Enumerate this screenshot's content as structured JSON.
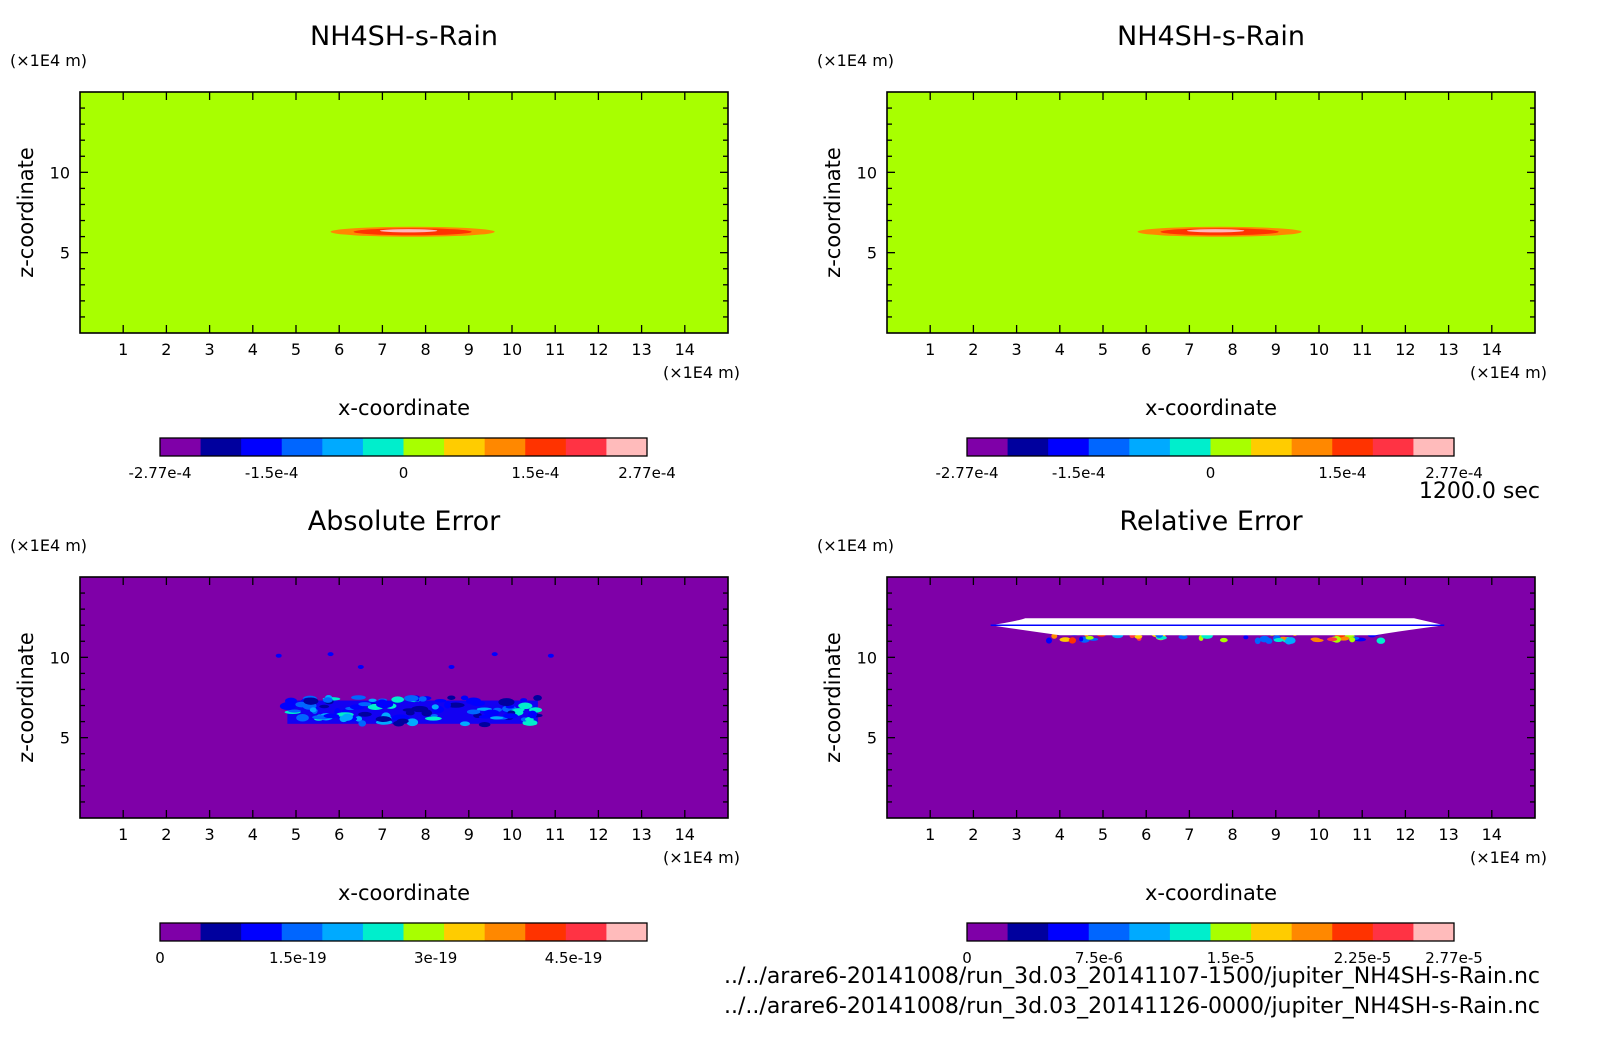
{
  "time_label": "1200.0 sec",
  "footer": {
    "file1": "../../arare6-20141008/run_3d.03_20141107-1500/jupiter_NH4SH-s-Rain.nc",
    "file2": "../../arare6-20141008/run_3d.03_20141126-0000/jupiter_NH4SH-s-Rain.nc"
  },
  "colors": {
    "purple": "#7f00a8",
    "green": "#a8ff00",
    "palette": [
      "#7f00a8",
      "#00009e",
      "#0000ff",
      "#0066ff",
      "#00aaff",
      "#00eecc",
      "#a8ff00",
      "#ffcc00",
      "#ff8800",
      "#ff3300",
      "#ff3344",
      "#ffbbbb"
    ]
  },
  "chart_data": [
    {
      "type": "heatmap",
      "title": "NH4SH-s-Rain",
      "xlabel": "x-coordinate",
      "ylabel": "z-coordinate",
      "xunit": "(×1E4 m)",
      "yunit": "(×1E4 m)",
      "xlim": [
        0,
        15
      ],
      "ylim": [
        0,
        15
      ],
      "xticks": [
        1,
        2,
        3,
        4,
        5,
        6,
        7,
        8,
        9,
        10,
        11,
        12,
        13,
        14
      ],
      "yticks": [
        5,
        10
      ],
      "background_value": 0,
      "feature": "thin lens of positive values centred near x=7.7, z=6.3, spanning x≈5.6–9.6",
      "colorbar": {
        "labels": [
          "-2.77e-4",
          "-1.5e-4",
          "0",
          "1.5e-4",
          "2.77e-4"
        ],
        "min": -0.000277,
        "max": 0.000277
      }
    },
    {
      "type": "heatmap",
      "title": "NH4SH-s-Rain",
      "xlabel": "x-coordinate",
      "ylabel": "z-coordinate",
      "xunit": "(×1E4 m)",
      "yunit": "(×1E4 m)",
      "xlim": [
        0,
        15
      ],
      "ylim": [
        0,
        15
      ],
      "xticks": [
        1,
        2,
        3,
        4,
        5,
        6,
        7,
        8,
        9,
        10,
        11,
        12,
        13,
        14
      ],
      "yticks": [
        5,
        10
      ],
      "background_value": 0,
      "feature": "thin lens of positive values centred near x=7.7, z=6.3, spanning x≈5.6–9.6",
      "colorbar": {
        "labels": [
          "-2.77e-4",
          "-1.5e-4",
          "0",
          "1.5e-4",
          "2.77e-4"
        ],
        "min": -0.000277,
        "max": 0.000277
      }
    },
    {
      "type": "heatmap",
      "title": "Absolute Error",
      "xlabel": "x-coordinate",
      "ylabel": "z-coordinate",
      "xunit": "(×1E4 m)",
      "yunit": "(×1E4 m)",
      "xlim": [
        0,
        15
      ],
      "ylim": [
        0,
        15
      ],
      "xticks": [
        1,
        2,
        3,
        4,
        5,
        6,
        7,
        8,
        9,
        10,
        11,
        12,
        13,
        14
      ],
      "yticks": [
        5,
        10
      ],
      "background_value": 0,
      "feature": "noisy band of small errors between x≈4.8–10.6, z≈5.8–7.5",
      "colorbar": {
        "labels": [
          "0",
          "1.5e-19",
          "3e-19",
          "4.5e-19"
        ],
        "min": 0,
        "max": 5.3e-19
      }
    },
    {
      "type": "heatmap",
      "title": "Relative Error",
      "xlabel": "x-coordinate",
      "ylabel": "z-coordinate",
      "xunit": "(×1E4 m)",
      "yunit": "(×1E4 m)",
      "xlim": [
        0,
        15
      ],
      "ylim": [
        0,
        15
      ],
      "xticks": [
        1,
        2,
        3,
        4,
        5,
        6,
        7,
        8,
        9,
        10,
        11,
        12,
        13,
        14
      ],
      "yticks": [
        5,
        10
      ],
      "background_value": 0,
      "feature": "white (undefined) band near z≈12 from x≈2.5–12.8 with small colored fringes",
      "colorbar": {
        "labels": [
          "0",
          "7.5e-6",
          "1.5e-5",
          "2.25e-5",
          "2.77e-5"
        ],
        "min": 0,
        "max": 2.77e-05
      }
    }
  ]
}
